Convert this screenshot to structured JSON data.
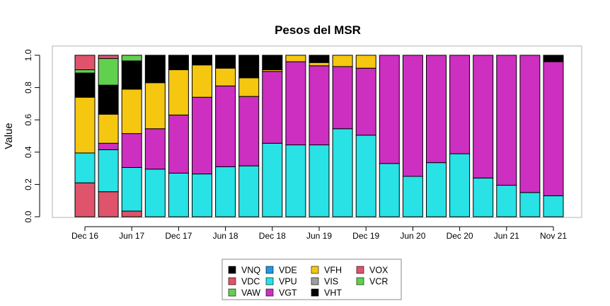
{
  "chart_data": {
    "type": "bar",
    "stacked": true,
    "title": "Pesos del MSR",
    "xlabel": "",
    "ylabel": "Value",
    "ylim": [
      0,
      1
    ],
    "yticks": [
      "0.0",
      "0.2",
      "0.4",
      "0.6",
      "0.8",
      "1.0"
    ],
    "xtick_labels": [
      "Dec 16",
      "Jun 17",
      "Dec 17",
      "Jun 18",
      "Dec 18",
      "Jun 19",
      "Dec 19",
      "Jun 20",
      "Dec 20",
      "Jun 21",
      "Nov 21"
    ],
    "xtick_bar_index": [
      0,
      2,
      4,
      6,
      8,
      10,
      12,
      14,
      16,
      18,
      20
    ],
    "n_bars": 21,
    "legend_position": "bottom",
    "stack_order": [
      "VOX",
      "VIS",
      "VPU",
      "VGT",
      "VFH",
      "VHT",
      "VDE",
      "VCR",
      "VNQ",
      "VAW",
      "VDC"
    ],
    "series": [
      {
        "name": "VOX",
        "color": "#DF536B",
        "values": [
          0.21,
          0.155,
          0.035,
          0,
          0,
          0,
          0,
          0,
          0,
          0,
          0,
          0,
          0,
          0,
          0,
          0,
          0,
          0,
          0,
          0,
          0
        ]
      },
      {
        "name": "VIS",
        "color": "#9E9E9E",
        "values": [
          0,
          0,
          0,
          0,
          0,
          0,
          0,
          0,
          0,
          0,
          0,
          0,
          0,
          0,
          0,
          0,
          0,
          0,
          0,
          0,
          0
        ]
      },
      {
        "name": "VPU",
        "color": "#28E2E5",
        "values": [
          0.185,
          0.26,
          0.27,
          0.295,
          0.27,
          0.265,
          0.31,
          0.315,
          0.455,
          0.445,
          0.445,
          0.545,
          0.505,
          0.33,
          0.25,
          0.335,
          0.39,
          0.24,
          0.195,
          0.15,
          0.13
        ]
      },
      {
        "name": "VGT",
        "color": "#CD2FC0",
        "values": [
          0,
          0.04,
          0.21,
          0.25,
          0.36,
          0.475,
          0.5,
          0.43,
          0.445,
          0.515,
          0.49,
          0.385,
          0.415,
          0.67,
          0.75,
          0.665,
          0.61,
          0.76,
          0.805,
          0.85,
          0.83
        ]
      },
      {
        "name": "VFH",
        "color": "#F5C710",
        "values": [
          0.345,
          0.18,
          0.275,
          0.285,
          0.28,
          0.2,
          0.11,
          0.115,
          0.01,
          0.04,
          0.02,
          0.07,
          0.08,
          0,
          0,
          0,
          0,
          0,
          0,
          0,
          0
        ]
      },
      {
        "name": "VHT",
        "color": "#000000",
        "values": [
          0,
          0,
          0,
          0,
          0,
          0,
          0,
          0,
          0,
          0,
          0.045,
          0,
          0,
          0,
          0,
          0,
          0,
          0,
          0,
          0,
          0.04
        ]
      },
      {
        "name": "VDE",
        "color": "#2297E6",
        "values": [
          0,
          0,
          0,
          0,
          0,
          0,
          0,
          0,
          0,
          0,
          0,
          0,
          0,
          0,
          0,
          0,
          0,
          0,
          0,
          0,
          0
        ]
      },
      {
        "name": "VCR",
        "color": "#61D04F",
        "values": [
          0,
          0,
          0,
          0,
          0,
          0,
          0,
          0,
          0,
          0,
          0,
          0,
          0,
          0,
          0,
          0,
          0,
          0,
          0,
          0,
          0
        ]
      },
      {
        "name": "VNQ",
        "color": "#000000",
        "values": [
          0.15,
          0.18,
          0.175,
          0.17,
          0.09,
          0.06,
          0.08,
          0.14,
          0.09,
          0,
          0,
          0,
          0,
          0,
          0,
          0,
          0,
          0,
          0,
          0,
          0
        ]
      },
      {
        "name": "VAW",
        "color": "#61D04F",
        "values": [
          0.02,
          0.165,
          0.035,
          0,
          0,
          0,
          0,
          0,
          0,
          0,
          0,
          0,
          0,
          0,
          0,
          0,
          0,
          0,
          0,
          0,
          0
        ]
      },
      {
        "name": "VDC",
        "color": "#DF536B",
        "values": [
          0.09,
          0.02,
          0,
          0,
          0,
          0,
          0,
          0,
          0,
          0,
          0,
          0,
          0,
          0,
          0,
          0,
          0,
          0,
          0,
          0,
          0
        ]
      }
    ],
    "legend": [
      {
        "name": "VNQ",
        "color": "#000000"
      },
      {
        "name": "VDC",
        "color": "#DF536B"
      },
      {
        "name": "VAW",
        "color": "#61D04F"
      },
      {
        "name": "VDE",
        "color": "#2297E6"
      },
      {
        "name": "VPU",
        "color": "#28E2E5"
      },
      {
        "name": "VGT",
        "color": "#CD2FC0"
      },
      {
        "name": "VFH",
        "color": "#F5C710"
      },
      {
        "name": "VIS",
        "color": "#9E9E9E"
      },
      {
        "name": "VHT",
        "color": "#000000"
      },
      {
        "name": "VOX",
        "color": "#DF536B"
      },
      {
        "name": "VCR",
        "color": "#61D04F"
      }
    ]
  }
}
